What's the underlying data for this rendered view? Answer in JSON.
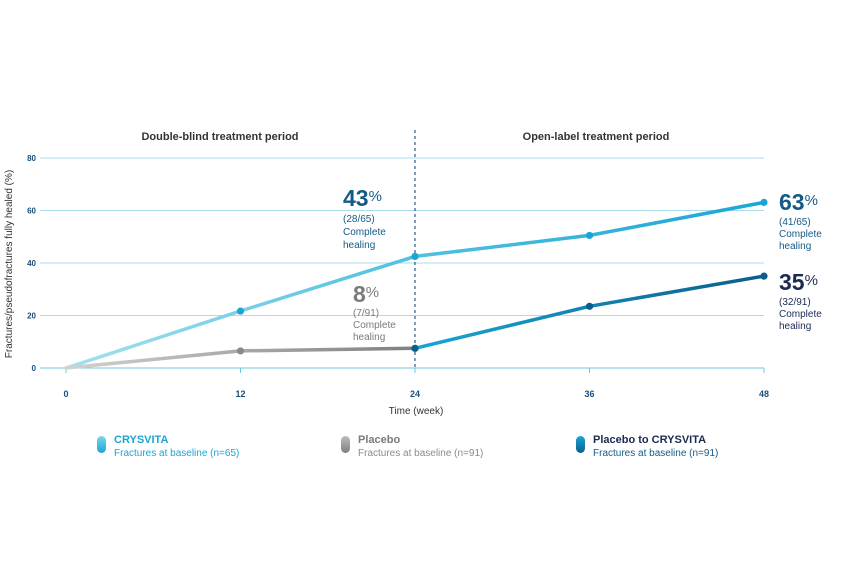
{
  "chart_data": {
    "type": "line",
    "title": "",
    "xlabel": "Time (week)",
    "ylabel": "Fractures/pseudofractures fully healed (%)",
    "x": [
      0,
      12,
      24,
      36,
      48
    ],
    "ylim": [
      0,
      80
    ],
    "yticks": [
      0,
      20,
      40,
      60,
      80
    ],
    "grid": true,
    "period_labels": [
      "Double-blind treatment period",
      "Open-label treatment period"
    ],
    "period_divider_x": 24,
    "series": [
      {
        "name": "CRYSVITA",
        "desc": "Fractures at baseline (n=65)",
        "x": [
          0,
          12,
          24,
          36,
          48
        ],
        "values": [
          0,
          21.7,
          42.5,
          50.5,
          63.1
        ],
        "color": "#1aa6d4"
      },
      {
        "name": "Placebo",
        "desc": "Fractures at baseline (n=91)",
        "x": [
          0,
          12,
          24
        ],
        "values": [
          0,
          6.5,
          7.5
        ],
        "color": "#8a8a8a"
      },
      {
        "name": "Placebo to CRYSVITA",
        "desc": "Fractures at baseline (n=91)",
        "x": [
          24,
          36,
          48
        ],
        "values": [
          7.5,
          23.5,
          35.0
        ],
        "color": "#0b5e8c"
      }
    ],
    "annotations": [
      {
        "id": "a43",
        "big": "43",
        "pct": "%",
        "sub1": "(28/65)",
        "sub2": "Complete",
        "sub3": "healing",
        "color": "#155b86"
      },
      {
        "id": "a8",
        "big": "8",
        "pct": "%",
        "sub1": "(7/91)",
        "sub2": "Complete",
        "sub3": "healing",
        "color": "#7a7a7a"
      },
      {
        "id": "a63",
        "big": "63",
        "pct": "%",
        "sub1": "(41/65)",
        "sub2": "Complete",
        "sub3": "healing",
        "color": "#155b86"
      },
      {
        "id": "a35",
        "big": "35",
        "pct": "%",
        "sub1": "(32/91)",
        "sub2": "Complete",
        "sub3": "healing",
        "color": "#1b2a52"
      }
    ]
  }
}
